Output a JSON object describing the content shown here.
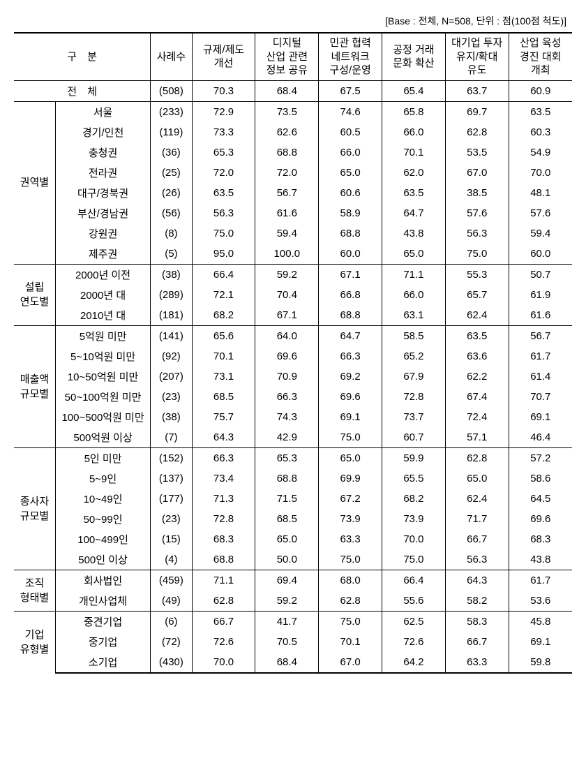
{
  "caption": "[Base : 전체, N=508, 단위 : 점(100점 척도)]",
  "header": {
    "category": "구　분",
    "n": "사례수",
    "cols": [
      "규제/제도\n개선",
      "디지털\n산업 관련\n정보 공유",
      "민관 협력\n네트워크\n구성/운영",
      "공정 거래\n문화 확산",
      "대기업 투자\n유지/확대\n유도",
      "산업 육성\n경진 대회\n개최"
    ]
  },
  "total": {
    "label": "전　체",
    "n": "(508)",
    "v": [
      "70.3",
      "68.4",
      "67.5",
      "65.4",
      "63.7",
      "60.9"
    ]
  },
  "groups": [
    {
      "label": "권역별",
      "rows": [
        {
          "sub": "서울",
          "n": "(233)",
          "v": [
            "72.9",
            "73.5",
            "74.6",
            "65.8",
            "69.7",
            "63.5"
          ]
        },
        {
          "sub": "경기/인천",
          "n": "(119)",
          "v": [
            "73.3",
            "62.6",
            "60.5",
            "66.0",
            "62.8",
            "60.3"
          ]
        },
        {
          "sub": "충청권",
          "n": "(36)",
          "v": [
            "65.3",
            "68.8",
            "66.0",
            "70.1",
            "53.5",
            "54.9"
          ]
        },
        {
          "sub": "전라권",
          "n": "(25)",
          "v": [
            "72.0",
            "72.0",
            "65.0",
            "62.0",
            "67.0",
            "70.0"
          ]
        },
        {
          "sub": "대구/경북권",
          "n": "(26)",
          "v": [
            "63.5",
            "56.7",
            "60.6",
            "63.5",
            "38.5",
            "48.1"
          ]
        },
        {
          "sub": "부산/경남권",
          "n": "(56)",
          "v": [
            "56.3",
            "61.6",
            "58.9",
            "64.7",
            "57.6",
            "57.6"
          ]
        },
        {
          "sub": "강원권",
          "n": "(8)",
          "v": [
            "75.0",
            "59.4",
            "68.8",
            "43.8",
            "56.3",
            "59.4"
          ]
        },
        {
          "sub": "제주권",
          "n": "(5)",
          "v": [
            "95.0",
            "100.0",
            "60.0",
            "65.0",
            "75.0",
            "60.0"
          ]
        }
      ]
    },
    {
      "label": "설립\n연도별",
      "rows": [
        {
          "sub": "2000년 이전",
          "n": "(38)",
          "v": [
            "66.4",
            "59.2",
            "67.1",
            "71.1",
            "55.3",
            "50.7"
          ]
        },
        {
          "sub": "2000년 대",
          "n": "(289)",
          "v": [
            "72.1",
            "70.4",
            "66.8",
            "66.0",
            "65.7",
            "61.9"
          ]
        },
        {
          "sub": "2010년 대",
          "n": "(181)",
          "v": [
            "68.2",
            "67.1",
            "68.8",
            "63.1",
            "62.4",
            "61.6"
          ]
        }
      ]
    },
    {
      "label": "매출액\n규모별",
      "rows": [
        {
          "sub": "5억원 미만",
          "n": "(141)",
          "v": [
            "65.6",
            "64.0",
            "64.7",
            "58.5",
            "63.5",
            "56.7"
          ]
        },
        {
          "sub": "5~10억원 미만",
          "n": "(92)",
          "v": [
            "70.1",
            "69.6",
            "66.3",
            "65.2",
            "63.6",
            "61.7"
          ]
        },
        {
          "sub": "10~50억원 미만",
          "n": "(207)",
          "v": [
            "73.1",
            "70.9",
            "69.2",
            "67.9",
            "62.2",
            "61.4"
          ]
        },
        {
          "sub": "50~100억원 미만",
          "n": "(23)",
          "v": [
            "68.5",
            "66.3",
            "69.6",
            "72.8",
            "67.4",
            "70.7"
          ]
        },
        {
          "sub": "100~500억원 미만",
          "n": "(38)",
          "v": [
            "75.7",
            "74.3",
            "69.1",
            "73.7",
            "72.4",
            "69.1"
          ]
        },
        {
          "sub": "500억원 이상",
          "n": "(7)",
          "v": [
            "64.3",
            "42.9",
            "75.0",
            "60.7",
            "57.1",
            "46.4"
          ]
        }
      ]
    },
    {
      "label": "종사자\n규모별",
      "rows": [
        {
          "sub": "5인 미만",
          "n": "(152)",
          "v": [
            "66.3",
            "65.3",
            "65.0",
            "59.9",
            "62.8",
            "57.2"
          ]
        },
        {
          "sub": "5~9인",
          "n": "(137)",
          "v": [
            "73.4",
            "68.8",
            "69.9",
            "65.5",
            "65.0",
            "58.6"
          ]
        },
        {
          "sub": "10~49인",
          "n": "(177)",
          "v": [
            "71.3",
            "71.5",
            "67.2",
            "68.2",
            "62.4",
            "64.5"
          ]
        },
        {
          "sub": "50~99인",
          "n": "(23)",
          "v": [
            "72.8",
            "68.5",
            "73.9",
            "73.9",
            "71.7",
            "69.6"
          ]
        },
        {
          "sub": "100~499인",
          "n": "(15)",
          "v": [
            "68.3",
            "65.0",
            "63.3",
            "70.0",
            "66.7",
            "68.3"
          ]
        },
        {
          "sub": "500인 이상",
          "n": "(4)",
          "v": [
            "68.8",
            "50.0",
            "75.0",
            "75.0",
            "56.3",
            "43.8"
          ]
        }
      ]
    },
    {
      "label": "조직\n형태별",
      "rows": [
        {
          "sub": "회사법인",
          "n": "(459)",
          "v": [
            "71.1",
            "69.4",
            "68.0",
            "66.4",
            "64.3",
            "61.7"
          ]
        },
        {
          "sub": "개인사업체",
          "n": "(49)",
          "v": [
            "62.8",
            "59.2",
            "62.8",
            "55.6",
            "58.2",
            "53.6"
          ]
        }
      ]
    },
    {
      "label": "기업\n유형별",
      "rows": [
        {
          "sub": "중견기업",
          "n": "(6)",
          "v": [
            "66.7",
            "41.7",
            "75.0",
            "62.5",
            "58.3",
            "45.8"
          ]
        },
        {
          "sub": "중기업",
          "n": "(72)",
          "v": [
            "72.6",
            "70.5",
            "70.1",
            "72.6",
            "66.7",
            "69.1"
          ]
        },
        {
          "sub": "소기업",
          "n": "(430)",
          "v": [
            "70.0",
            "68.4",
            "67.0",
            "64.2",
            "63.3",
            "59.8"
          ]
        }
      ]
    }
  ]
}
